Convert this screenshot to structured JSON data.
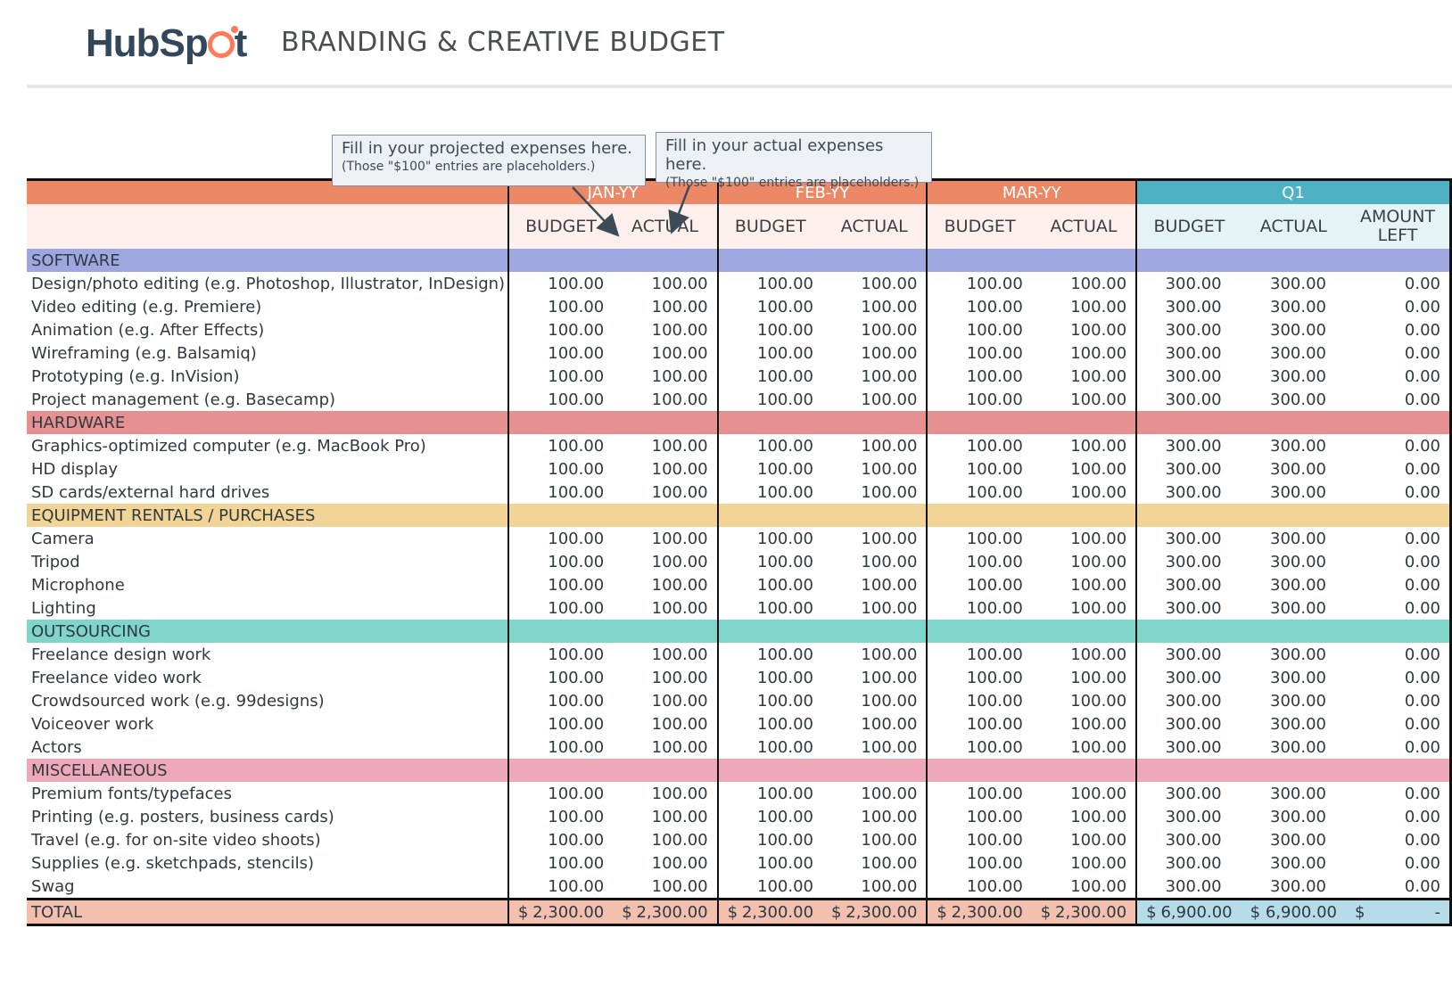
{
  "header": {
    "logo": "HubSpot",
    "title": "BRANDING & CREATIVE BUDGET"
  },
  "callouts": {
    "projected": {
      "text_pre": "Fill in your ",
      "text_em": "projected",
      "text_post": " expenses here.",
      "note": "(Those \"$100\" entries are placeholders.)"
    },
    "actual": {
      "text_pre": "Fill in your ",
      "text_em": "actual",
      "text_post": " expenses here.",
      "note": "(Those \"$100\" entries are placeholders.)"
    }
  },
  "columns": {
    "months": [
      "JAN-YY",
      "FEB-YY",
      "MAR-YY"
    ],
    "quarter": "Q1",
    "budget": "BUDGET",
    "actual": "ACTUAL",
    "amount_left_1": "AMOUNT",
    "amount_left_2": "LEFT"
  },
  "sections": [
    {
      "name": "SOFTWARE",
      "items": [
        "Design/photo editing (e.g. Photoshop, Illustrator, InDesign)",
        "Video editing (e.g. Premiere)",
        "Animation (e.g. After Effects)",
        "Wireframing (e.g. Balsamiq)",
        "Prototyping (e.g. InVision)",
        "Project management (e.g. Basecamp)"
      ]
    },
    {
      "name": "HARDWARE",
      "items": [
        "Graphics-optimized computer (e.g. MacBook Pro)",
        "HD display",
        "SD cards/external hard drives"
      ]
    },
    {
      "name": "EQUIPMENT RENTALS / PURCHASES",
      "items": [
        "Camera",
        "Tripod",
        "Microphone",
        "Lighting"
      ]
    },
    {
      "name": "OUTSOURCING",
      "items": [
        "Freelance design work",
        "Freelance video work",
        "Crowdsourced work (e.g. 99designs)",
        "Voiceover work",
        "Actors"
      ]
    },
    {
      "name": "MISCELLANEOUS",
      "items": [
        "Premium fonts/typefaces",
        "Printing (e.g. posters, business cards)",
        "Travel (e.g. for on-site video shoots)",
        "Supplies (e.g. sketchpads, stencils)",
        "Swag"
      ]
    }
  ],
  "row_values": {
    "month_budget": "100.00",
    "month_actual": "100.00",
    "q_budget": "300.00",
    "q_actual": "300.00",
    "q_left": "0.00"
  },
  "total": {
    "label": "TOTAL",
    "currency": "$",
    "month_budget": "2,300.00",
    "month_actual": "2,300.00",
    "q_budget": "6,900.00",
    "q_actual": "6,900.00",
    "q_left": "-"
  }
}
